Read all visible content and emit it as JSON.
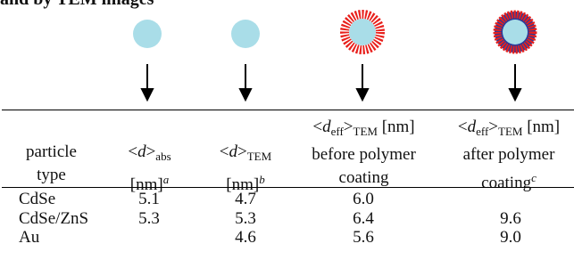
{
  "caption": "and by TEM images",
  "table": {
    "header": [
      [
        "particle",
        "type"
      ],
      [
        "<",
        "d",
        ">",
        "abs",
        "[nm]",
        "a"
      ],
      [
        "<",
        "d",
        ">",
        "TEM",
        "[nm]",
        "b"
      ],
      [
        "<",
        "d",
        "eff",
        ">",
        "TEM",
        "[nm]",
        "before polymer",
        "coating"
      ],
      [
        "<",
        "d",
        "eff",
        ">",
        "TEM",
        "[nm]",
        "after polymer",
        "coating",
        "c"
      ]
    ],
    "rows": [
      [
        "CdSe",
        "5.1",
        "4.7",
        "6.0",
        null
      ],
      [
        "CdSe/ZnS",
        "5.3",
        "5.3",
        "6.4",
        "9.6"
      ],
      [
        "Au",
        null,
        "4.6",
        "5.6",
        "9.0"
      ]
    ]
  }
}
